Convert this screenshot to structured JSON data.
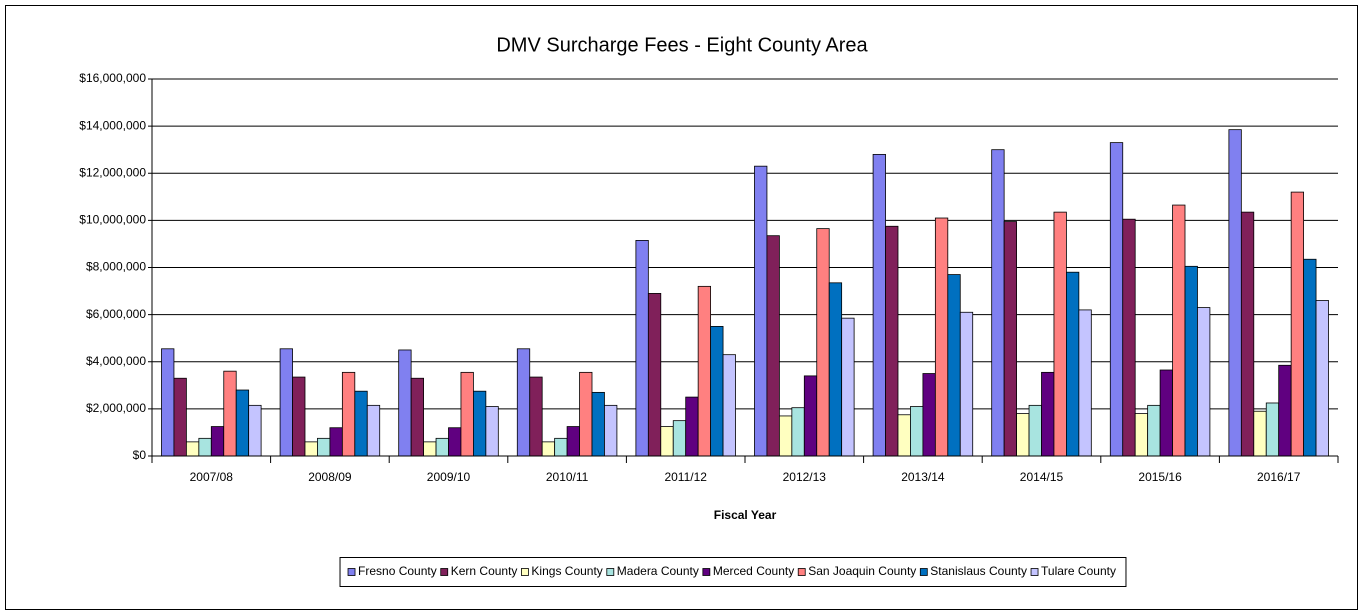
{
  "chart_data": {
    "type": "bar",
    "title": "DMV Surcharge Fees - Eight County Area",
    "x_label": "Fiscal Year",
    "categories": [
      "2007/08",
      "2008/09",
      "2009/10",
      "2010/11",
      "2011/12",
      "2012/13",
      "2013/14",
      "2014/15",
      "2015/16",
      "2016/17"
    ],
    "series": [
      {
        "name": "Fresno County",
        "color": "#8080f0",
        "values": [
          4550000,
          4550000,
          4500000,
          4550000,
          9150000,
          12300000,
          12800000,
          13000000,
          13300000,
          13850000
        ]
      },
      {
        "name": "Kern County",
        "color": "#80205a",
        "values": [
          3300000,
          3350000,
          3300000,
          3350000,
          6900000,
          9350000,
          9750000,
          9950000,
          10050000,
          10350000
        ]
      },
      {
        "name": "Kings County",
        "color": "#ffffc0",
        "values": [
          600000,
          600000,
          600000,
          600000,
          1250000,
          1700000,
          1750000,
          1800000,
          1800000,
          1900000
        ]
      },
      {
        "name": "Madera County",
        "color": "#a8e4e0",
        "values": [
          750000,
          750000,
          750000,
          750000,
          1500000,
          2050000,
          2100000,
          2150000,
          2150000,
          2250000
        ]
      },
      {
        "name": "Merced County",
        "color": "#600080",
        "values": [
          1250000,
          1200000,
          1200000,
          1250000,
          2500000,
          3400000,
          3500000,
          3550000,
          3650000,
          3850000
        ]
      },
      {
        "name": "San Joaquin County",
        "color": "#ff8080",
        "values": [
          3600000,
          3550000,
          3550000,
          3550000,
          7200000,
          9650000,
          10100000,
          10350000,
          10650000,
          11200000
        ]
      },
      {
        "name": "Stanislaus County",
        "color": "#0070c0",
        "values": [
          2800000,
          2750000,
          2750000,
          2700000,
          5500000,
          7350000,
          7700000,
          7800000,
          8050000,
          8350000
        ]
      },
      {
        "name": "Tulare County",
        "color": "#c4c4ff",
        "values": [
          2150000,
          2150000,
          2100000,
          2150000,
          4300000,
          5850000,
          6100000,
          6200000,
          6300000,
          6600000
        ]
      }
    ],
    "ylim": [
      0,
      16000000
    ],
    "yticks": [
      {
        "value": 0,
        "label": "$0"
      },
      {
        "value": 2000000,
        "label": "$2,000,000"
      },
      {
        "value": 4000000,
        "label": "$4,000,000"
      },
      {
        "value": 6000000,
        "label": "$6,000,000"
      },
      {
        "value": 8000000,
        "label": "$8,000,000"
      },
      {
        "value": 10000000,
        "label": "$10,000,000"
      },
      {
        "value": 12000000,
        "label": "$12,000,000"
      },
      {
        "value": 14000000,
        "label": "$14,000,000"
      },
      {
        "value": 16000000,
        "label": "$16,000,000"
      }
    ],
    "grid": true,
    "legend": "bottom"
  }
}
